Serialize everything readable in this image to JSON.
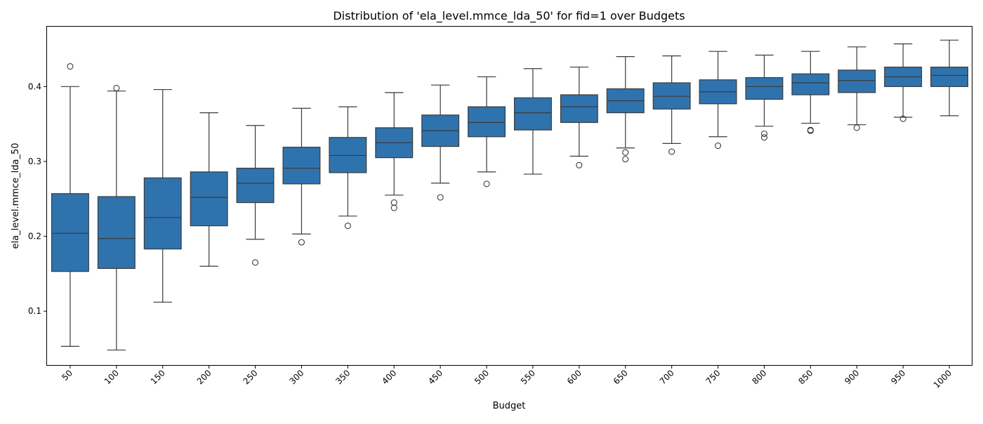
{
  "chart_data": {
    "type": "box",
    "title": "Distribution of 'ela_level.mmce_lda_50' for fid=1 over Budgets",
    "xlabel": "Budget",
    "ylabel": "ela_level.mmce_lda_50",
    "ylim": [
      0.028,
      0.48
    ],
    "yticks": [
      "0.1",
      "0.2",
      "0.3",
      "0.4"
    ],
    "ytick_values": [
      0.1,
      0.2,
      0.3,
      0.4
    ],
    "grid": false,
    "box_color": "#2f73ae",
    "line_color": "#3a3a3a",
    "categories": [
      "50",
      "100",
      "150",
      "200",
      "250",
      "300",
      "350",
      "400",
      "450",
      "500",
      "550",
      "600",
      "650",
      "700",
      "750",
      "800",
      "850",
      "900",
      "950",
      "1000"
    ],
    "boxes": [
      {
        "category": "50",
        "whisker_low": 0.053,
        "q1": 0.153,
        "median": 0.204,
        "q3": 0.257,
        "whisker_high": 0.4,
        "outliers": [
          0.427
        ]
      },
      {
        "category": "100",
        "whisker_low": 0.048,
        "q1": 0.157,
        "median": 0.197,
        "q3": 0.253,
        "whisker_high": 0.394,
        "outliers": [
          0.398
        ]
      },
      {
        "category": "150",
        "whisker_low": 0.112,
        "q1": 0.183,
        "median": 0.225,
        "q3": 0.278,
        "whisker_high": 0.396,
        "outliers": []
      },
      {
        "category": "200",
        "whisker_low": 0.16,
        "q1": 0.214,
        "median": 0.252,
        "q3": 0.286,
        "whisker_high": 0.365,
        "outliers": []
      },
      {
        "category": "250",
        "whisker_low": 0.196,
        "q1": 0.245,
        "median": 0.271,
        "q3": 0.291,
        "whisker_high": 0.348,
        "outliers": [
          0.165
        ]
      },
      {
        "category": "300",
        "whisker_low": 0.203,
        "q1": 0.27,
        "median": 0.291,
        "q3": 0.319,
        "whisker_high": 0.371,
        "outliers": [
          0.192
        ]
      },
      {
        "category": "350",
        "whisker_low": 0.227,
        "q1": 0.285,
        "median": 0.308,
        "q3": 0.332,
        "whisker_high": 0.373,
        "outliers": [
          0.214
        ]
      },
      {
        "category": "400",
        "whisker_low": 0.255,
        "q1": 0.305,
        "median": 0.325,
        "q3": 0.345,
        "whisker_high": 0.392,
        "outliers": [
          0.245,
          0.238
        ]
      },
      {
        "category": "450",
        "whisker_low": 0.271,
        "q1": 0.32,
        "median": 0.341,
        "q3": 0.362,
        "whisker_high": 0.402,
        "outliers": [
          0.252
        ]
      },
      {
        "category": "500",
        "whisker_low": 0.286,
        "q1": 0.333,
        "median": 0.352,
        "q3": 0.373,
        "whisker_high": 0.413,
        "outliers": [
          0.27
        ]
      },
      {
        "category": "550",
        "whisker_low": 0.283,
        "q1": 0.342,
        "median": 0.365,
        "q3": 0.385,
        "whisker_high": 0.424,
        "outliers": []
      },
      {
        "category": "600",
        "whisker_low": 0.307,
        "q1": 0.352,
        "median": 0.373,
        "q3": 0.389,
        "whisker_high": 0.426,
        "outliers": [
          0.295
        ]
      },
      {
        "category": "650",
        "whisker_low": 0.318,
        "q1": 0.365,
        "median": 0.381,
        "q3": 0.397,
        "whisker_high": 0.44,
        "outliers": [
          0.312,
          0.303
        ]
      },
      {
        "category": "700",
        "whisker_low": 0.324,
        "q1": 0.37,
        "median": 0.387,
        "q3": 0.405,
        "whisker_high": 0.441,
        "outliers": [
          0.313
        ]
      },
      {
        "category": "750",
        "whisker_low": 0.333,
        "q1": 0.377,
        "median": 0.393,
        "q3": 0.409,
        "whisker_high": 0.447,
        "outliers": [
          0.321
        ]
      },
      {
        "category": "800",
        "whisker_low": 0.347,
        "q1": 0.383,
        "median": 0.4,
        "q3": 0.412,
        "whisker_high": 0.442,
        "outliers": [
          0.337,
          0.332
        ]
      },
      {
        "category": "850",
        "whisker_low": 0.351,
        "q1": 0.389,
        "median": 0.405,
        "q3": 0.417,
        "whisker_high": 0.447,
        "outliers": [
          0.342,
          0.341
        ]
      },
      {
        "category": "900",
        "whisker_low": 0.349,
        "q1": 0.392,
        "median": 0.408,
        "q3": 0.422,
        "whisker_high": 0.453,
        "outliers": [
          0.345
        ]
      },
      {
        "category": "950",
        "whisker_low": 0.359,
        "q1": 0.4,
        "median": 0.413,
        "q3": 0.426,
        "whisker_high": 0.457,
        "outliers": [
          0.357
        ]
      },
      {
        "category": "1000",
        "whisker_low": 0.361,
        "q1": 0.4,
        "median": 0.415,
        "q3": 0.426,
        "whisker_high": 0.462,
        "outliers": []
      }
    ]
  }
}
